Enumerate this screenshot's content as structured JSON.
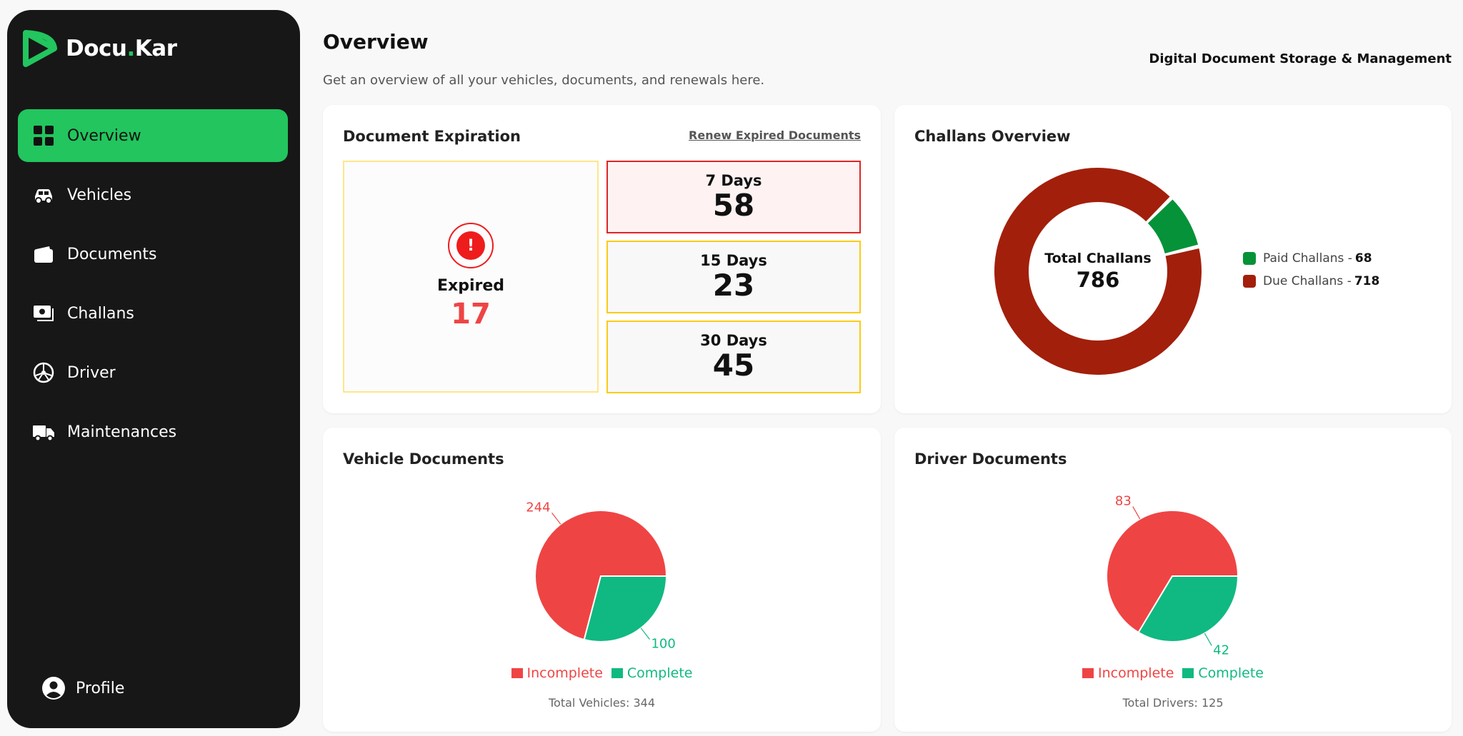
{
  "app": {
    "logo_text": "Docu",
    "logo_dot": ".",
    "logo_text2": "Kar"
  },
  "sidebar": {
    "items": [
      {
        "label": "Overview",
        "icon": "grid-icon",
        "active": true
      },
      {
        "label": "Vehicles",
        "icon": "car-icon"
      },
      {
        "label": "Documents",
        "icon": "wallet-icon"
      },
      {
        "label": "Challans",
        "icon": "cash-icon"
      },
      {
        "label": "Driver",
        "icon": "steering-wheel-icon"
      },
      {
        "label": "Maintenances",
        "icon": "truck-icon"
      }
    ],
    "profile": "Profile"
  },
  "header": {
    "title": "Overview",
    "subtitle": "Get an overview of all your vehicles, documents, and renewals here.",
    "tagline": "Digital Document Storage & Management"
  },
  "expiration": {
    "title": "Document Expiration",
    "renew_link": "Renew Expired Documents",
    "expired_label": "Expired",
    "expired_value": "17",
    "alert_glyph": "!",
    "days": [
      {
        "label": "7 Days",
        "value": "58"
      },
      {
        "label": "15 Days",
        "value": "23"
      },
      {
        "label": "30 Days",
        "value": "45"
      }
    ]
  },
  "challans": {
    "title": "Challans Overview",
    "center_label": "Total Challans",
    "center_value": "786",
    "paid_label": "Paid Challans -",
    "paid_value": "68",
    "due_label": "Due Challans -",
    "due_value": "718",
    "paid_color": "#059238",
    "due_color": "#a21f0b"
  },
  "vehicle_docs": {
    "title": "Vehicle Documents",
    "incomplete_label": "Incomplete",
    "complete_label": "Complete",
    "total_text": "Total Vehicles: 344",
    "incomplete_color": "#ef4444",
    "complete_color": "#10b981"
  },
  "driver_docs": {
    "title": "Driver Documents",
    "incomplete_label": "Incomplete",
    "complete_label": "Complete",
    "total_text": "Total Drivers: 125",
    "incomplete_color": "#ef4444",
    "complete_color": "#10b981"
  },
  "chart_data": [
    {
      "type": "pie",
      "categories": [
        "Paid Challans",
        "Due Challans"
      ],
      "values": [
        68,
        718
      ],
      "title": "Challans Overview",
      "donut": true,
      "legend": "right"
    },
    {
      "type": "pie",
      "categories": [
        "Incomplete",
        "Complete"
      ],
      "values": [
        244,
        100
      ],
      "title": "Vehicle Documents",
      "legend": "bottom"
    },
    {
      "type": "pie",
      "categories": [
        "Incomplete",
        "Complete"
      ],
      "values": [
        83,
        42
      ],
      "title": "Driver Documents",
      "legend": "bottom"
    }
  ]
}
